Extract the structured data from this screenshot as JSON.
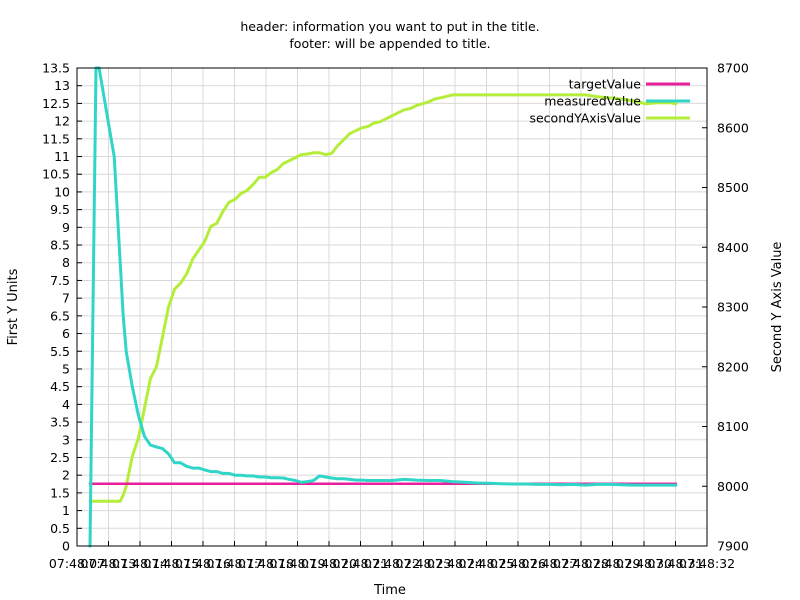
{
  "chart_data": {
    "type": "line",
    "title_line1": "header: information you want to put in the title.",
    "title_line2": "footer: will be appended to title.",
    "xlabel": "Time",
    "ylabel": "First Y Units",
    "y2label": "Second Y Axis Value",
    "grid": true,
    "legend_position": "top-right",
    "ylim": [
      0,
      13.5
    ],
    "y2lim": [
      7900,
      8700
    ],
    "y_ticks": [
      0,
      0.5,
      1,
      1.5,
      2,
      2.5,
      3,
      3.5,
      4,
      4.5,
      5,
      5.5,
      6,
      6.5,
      7,
      7.5,
      8,
      8.5,
      9,
      9.5,
      10,
      10.5,
      11,
      11.5,
      12,
      12.5,
      13,
      13.5
    ],
    "y_tick_labels": [
      "0",
      "0.5",
      "1",
      "1.5",
      "2",
      "2.5",
      "3",
      "3.5",
      "4",
      "4.5",
      "5",
      "5.5",
      "6",
      "6.5",
      "7",
      "7.5",
      "8",
      "8.5",
      "9",
      "9.5",
      "10",
      "10.5",
      "11",
      "11.5",
      "12",
      "12.5",
      "13",
      "13.5"
    ],
    "y2_ticks": [
      7900,
      8000,
      8100,
      8200,
      8300,
      8400,
      8500,
      8600,
      8700
    ],
    "y2_tick_labels": [
      "7900",
      "8000",
      "8100",
      "8200",
      "8300",
      "8400",
      "8500",
      "8600",
      "8700"
    ],
    "x_tick_labels": [
      "07:48:07",
      "07:48:13",
      "07:48:14",
      "07:48:15",
      "07:48:16",
      "07:48:17",
      "07:48:18",
      "07:48:19",
      "07:48:20",
      "07:48:21",
      "07:48:22",
      "07:48:23",
      "07:48:24",
      "07:48:25",
      "07:48:26",
      "07:48:27",
      "07:48:28",
      "07:48:29",
      "07:48:30",
      "07:48:31",
      "07:48:32"
    ],
    "series": [
      {
        "name": "targetValue",
        "color": "#e8209c",
        "axis": "y1",
        "x": [
          0.0,
          0.97
        ],
        "y": [
          1.76,
          1.76
        ]
      },
      {
        "name": "measuredValue",
        "color": "#2fd6c8",
        "axis": "y1",
        "x": [
          0.0,
          0.01,
          0.015,
          0.02,
          0.03,
          0.04,
          0.045,
          0.05,
          0.055,
          0.06,
          0.07,
          0.08,
          0.09,
          0.1,
          0.11,
          0.12,
          0.13,
          0.14,
          0.15,
          0.16,
          0.17,
          0.18,
          0.19,
          0.2,
          0.21,
          0.22,
          0.23,
          0.24,
          0.25,
          0.26,
          0.27,
          0.28,
          0.29,
          0.3,
          0.31,
          0.32,
          0.33,
          0.34,
          0.35,
          0.36,
          0.37,
          0.38,
          0.39,
          0.4,
          0.41,
          0.42,
          0.43,
          0.44,
          0.45,
          0.46,
          0.47,
          0.48,
          0.49,
          0.5,
          0.52,
          0.54,
          0.56,
          0.58,
          0.6,
          0.62,
          0.64,
          0.66,
          0.68,
          0.7,
          0.72,
          0.74,
          0.76,
          0.78,
          0.8,
          0.82,
          0.84,
          0.86,
          0.88,
          0.9,
          0.92,
          0.94,
          0.97
        ],
        "y": [
          0,
          13.5,
          13.5,
          13.0,
          12.0,
          11.0,
          9.5,
          8.0,
          6.5,
          5.5,
          4.5,
          3.7,
          3.1,
          2.85,
          2.8,
          2.75,
          2.6,
          2.35,
          2.35,
          2.25,
          2.2,
          2.2,
          2.15,
          2.1,
          2.1,
          2.05,
          2.05,
          2.0,
          2.0,
          1.98,
          1.98,
          1.95,
          1.95,
          1.93,
          1.93,
          1.92,
          1.88,
          1.85,
          1.8,
          1.82,
          1.85,
          1.98,
          1.95,
          1.92,
          1.9,
          1.9,
          1.88,
          1.86,
          1.86,
          1.85,
          1.85,
          1.85,
          1.85,
          1.85,
          1.88,
          1.86,
          1.85,
          1.85,
          1.82,
          1.8,
          1.78,
          1.77,
          1.76,
          1.75,
          1.75,
          1.74,
          1.74,
          1.73,
          1.74,
          1.72,
          1.74,
          1.74,
          1.73,
          1.72,
          1.72,
          1.72,
          1.72
        ]
      },
      {
        "name": "secondYAxisValue",
        "color": "#b4ee3a",
        "axis": "y2",
        "x": [
          0.0,
          0.01,
          0.02,
          0.03,
          0.04,
          0.05,
          0.055,
          0.06,
          0.07,
          0.08,
          0.09,
          0.1,
          0.11,
          0.12,
          0.13,
          0.14,
          0.15,
          0.16,
          0.17,
          0.18,
          0.19,
          0.2,
          0.21,
          0.22,
          0.23,
          0.24,
          0.25,
          0.26,
          0.27,
          0.28,
          0.29,
          0.3,
          0.31,
          0.32,
          0.33,
          0.34,
          0.35,
          0.36,
          0.37,
          0.38,
          0.39,
          0.4,
          0.41,
          0.42,
          0.43,
          0.44,
          0.45,
          0.46,
          0.47,
          0.48,
          0.49,
          0.5,
          0.51,
          0.52,
          0.53,
          0.54,
          0.55,
          0.56,
          0.57,
          0.58,
          0.6,
          0.62,
          0.64,
          0.66,
          0.68,
          0.7,
          0.72,
          0.74,
          0.76,
          0.78,
          0.8,
          0.82,
          0.84,
          0.86,
          0.88,
          0.9,
          0.92,
          0.94,
          0.96,
          0.97
        ],
        "y": [
          7975,
          7975,
          7975,
          7975,
          7975,
          7975,
          7985,
          8000,
          8050,
          8080,
          8130,
          8180,
          8200,
          8250,
          8300,
          8330,
          8340,
          8355,
          8380,
          8395,
          8410,
          8435,
          8440,
          8460,
          8475,
          8480,
          8490,
          8495,
          8505,
          8517,
          8517,
          8525,
          8530,
          8540,
          8545,
          8550,
          8555,
          8556,
          8558,
          8558,
          8555,
          8557,
          8570,
          8580,
          8590,
          8595,
          8600,
          8602,
          8608,
          8610,
          8615,
          8620,
          8625,
          8630,
          8632,
          8637,
          8640,
          8643,
          8648,
          8650,
          8655,
          8655,
          8655,
          8655,
          8655,
          8655,
          8655,
          8655,
          8655,
          8655,
          8655,
          8655,
          8652,
          8650,
          8648,
          8645,
          8640,
          8642,
          8642,
          8640
        ]
      }
    ]
  }
}
